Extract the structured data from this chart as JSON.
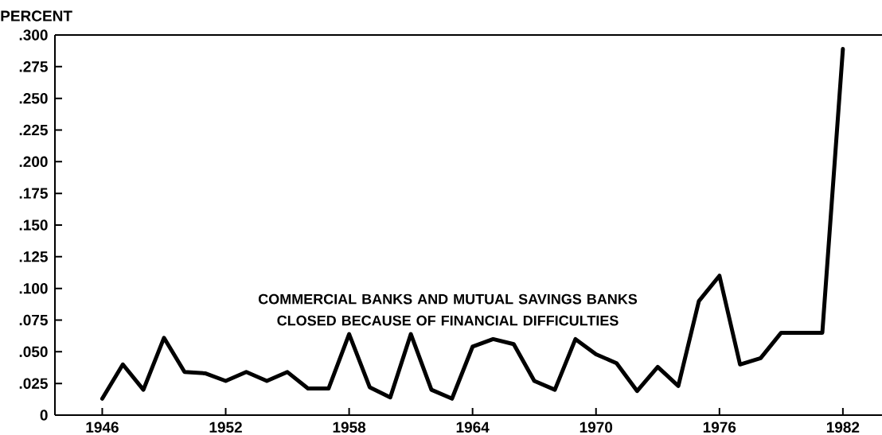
{
  "chart_data": {
    "type": "line",
    "ylabel": "PERCENT",
    "annotations": [
      "COMMERCIAL BANKS AND MUTUAL SAVINGS BANKS CLOSED BECAUSE OF FINANCIAL DIFFICULTIES"
    ],
    "x": [
      1946,
      1947,
      1948,
      1949,
      1950,
      1951,
      1952,
      1953,
      1954,
      1955,
      1956,
      1957,
      1958,
      1959,
      1960,
      1961,
      1962,
      1963,
      1964,
      1965,
      1966,
      1967,
      1968,
      1969,
      1970,
      1971,
      1972,
      1973,
      1974,
      1975,
      1976,
      1977,
      1978,
      1979,
      1980,
      1981,
      1982
    ],
    "series": [
      {
        "color": "#000000",
        "values": [
          0.013,
          0.04,
          0.02,
          0.061,
          0.034,
          0.033,
          0.027,
          0.034,
          0.027,
          0.034,
          0.021,
          0.021,
          0.064,
          0.022,
          0.014,
          0.064,
          0.02,
          0.013,
          0.054,
          0.06,
          0.056,
          0.027,
          0.02,
          0.06,
          0.048,
          0.041,
          0.019,
          0.038,
          0.023,
          0.09,
          0.11,
          0.04,
          0.045,
          0.065,
          0.065,
          0.065,
          0.289
        ]
      }
    ],
    "xlim": [
      1943.7,
      1983.9
    ],
    "ylim": [
      0,
      0.3
    ],
    "xticks": [
      1946,
      1952,
      1958,
      1964,
      1970,
      1976,
      1982
    ],
    "yticks": [
      0,
      {
        "value": 0.025,
        "label": ".025"
      },
      {
        "value": 0.05,
        "label": ".050"
      },
      {
        "value": 0.075,
        "label": ".075"
      },
      {
        "value": 0.1,
        "label": ".100"
      },
      {
        "value": 0.125,
        "label": ".125"
      },
      {
        "value": 0.15,
        "label": ".150"
      },
      {
        "value": 0.175,
        "label": ".175"
      },
      {
        "value": 0.2,
        "label": ".200"
      },
      {
        "value": 0.225,
        "label": ".225"
      },
      {
        "value": 0.25,
        "label": ".250"
      },
      {
        "value": 0.275,
        "label": ".275"
      },
      {
        "value": 0.3,
        "label": ".300"
      }
    ],
    "grid": false,
    "marker": "none",
    "line_style": "solid"
  }
}
